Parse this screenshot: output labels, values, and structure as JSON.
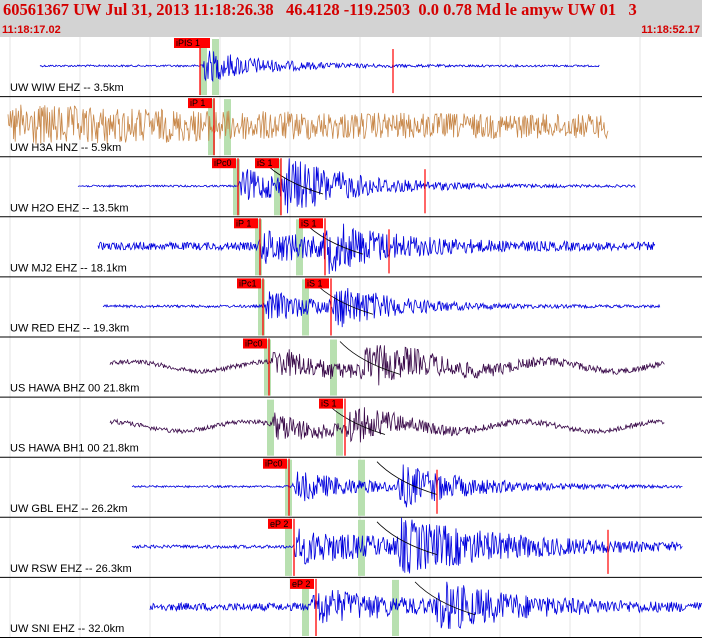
{
  "header": {
    "title": "60561367 UW Jul 31, 2013 11:18:26.38   46.4128 -119.2503  0.0 0.78 Md le amyw UW 01   3",
    "start_time": "11:18:17.02",
    "end_time": "11:18:52.17"
  },
  "colors": {
    "header_bg": "#d3d3d3",
    "header_text": "#d40000",
    "pick": "#ff0000",
    "window": "#b8e0b0"
  },
  "traces": [
    {
      "label": "UW WIW EHZ -- 3.5km",
      "color": "#0000dd",
      "picks": [
        {
          "text": "iPIS 1",
          "x": 174
        }
      ],
      "onset": 200,
      "end": 600,
      "amp": 0.55,
      "noise": 0.03,
      "sOffset": 0,
      "decay": 60,
      "windows": [
        200,
        212
      ],
      "extra": [
        393
      ]
    },
    {
      "label": "UW H3A HNZ -- 5.9km",
      "color": "#c8884a",
      "picks": [
        {
          "text": "iP 1",
          "x": 188
        }
      ],
      "onset": 8,
      "end": 608,
      "amp": 0.35,
      "noise": 0.35,
      "sOffset": 0,
      "decay": 200,
      "windows": [
        208,
        224
      ],
      "extra": []
    },
    {
      "label": "UW H2O EHZ -- 13.5km",
      "color": "#0000dd",
      "picks": [
        {
          "text": "iPc0",
          "x": 212
        },
        {
          "text": "iS 1",
          "x": 255
        }
      ],
      "onset": 238,
      "end": 636,
      "amp": 0.55,
      "noise": 0.03,
      "sOffset": 45,
      "decay": 70,
      "windows": [
        233,
        274
      ],
      "extra": [
        425
      ]
    },
    {
      "label": "UW MJ2 EHZ -- 18.1km",
      "color": "#0000dd",
      "picks": [
        {
          "text": "iP 1",
          "x": 234
        },
        {
          "text": "iS 1",
          "x": 299
        }
      ],
      "onset": 258,
      "end": 655,
      "amp": 0.5,
      "noise": 0.12,
      "sOffset": 65,
      "decay": 70,
      "windows": [
        255,
        296
      ],
      "extra": [
        389
      ]
    },
    {
      "label": "UW RED EHZ -- 19.3km",
      "color": "#0000dd",
      "picks": [
        {
          "text": "iPc1",
          "x": 237
        },
        {
          "text": "iS 1",
          "x": 305
        }
      ],
      "onset": 263,
      "end": 660,
      "amp": 0.5,
      "noise": 0.04,
      "sOffset": 70,
      "decay": 60,
      "windows": [
        258,
        302
      ],
      "extra": []
    },
    {
      "label": "US HAWA BHZ 00 21.8km",
      "color": "#3a0a4a",
      "picks": [
        {
          "text": "iPc0",
          "x": 243
        }
      ],
      "onset": 270,
      "end": 665,
      "amp": 0.45,
      "noise": 0.07,
      "sOffset": 90,
      "decay": 80,
      "windows": [
        264,
        330
      ],
      "extra": []
    },
    {
      "label": "US HAWA BH1 00 21.8km",
      "color": "#3a0a4a",
      "picks": [
        {
          "text": "iS 1",
          "x": 319
        }
      ],
      "onset": 270,
      "end": 665,
      "amp": 0.45,
      "noise": 0.07,
      "sOffset": 75,
      "decay": 50,
      "windows": [
        267,
        336
      ],
      "extra": []
    },
    {
      "label": "UW GBL EHZ -- 26.2km",
      "color": "#0000dd",
      "picks": [
        {
          "text": "iPc0",
          "x": 263
        }
      ],
      "onset": 292,
      "end": 683,
      "amp": 0.5,
      "noise": 0.03,
      "sOffset": 105,
      "decay": 70,
      "windows": [
        285,
        358
      ],
      "extra": [
        437
      ]
    },
    {
      "label": "UW RSW EHZ -- 26.3km",
      "color": "#0000dd",
      "picks": [
        {
          "text": "eP 2",
          "x": 268
        }
      ],
      "onset": 292,
      "end": 683,
      "amp": 0.55,
      "noise": 0.05,
      "sOffset": 105,
      "decay": 120,
      "windows": [
        285,
        358
      ],
      "extra": [
        608
      ]
    },
    {
      "label": "UW SNI EHZ -- 32.0km",
      "color": "#0000dd",
      "picks": [
        {
          "text": "eP 2",
          "x": 290
        }
      ],
      "onset": 310,
      "end": 702,
      "amp": 0.55,
      "noise": 0.12,
      "sOffset": 125,
      "decay": 80,
      "windows": [
        302,
        392
      ],
      "extra": []
    }
  ]
}
